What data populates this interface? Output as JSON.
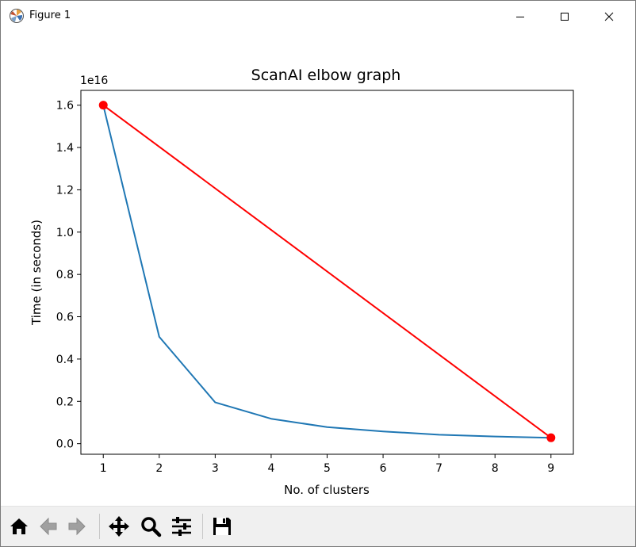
{
  "window": {
    "title": "Figure 1"
  },
  "toolbar": {
    "buttons": [
      {
        "name": "home-button",
        "icon": "home-icon"
      },
      {
        "name": "back-button",
        "icon": "arrow-left-icon"
      },
      {
        "name": "forward-button",
        "icon": "arrow-right-icon"
      },
      {
        "name": "pan-button",
        "icon": "move-icon"
      },
      {
        "name": "zoom-button",
        "icon": "magnifier-icon"
      },
      {
        "name": "configure-subplots-button",
        "icon": "sliders-icon"
      },
      {
        "name": "save-button",
        "icon": "floppy-disk-icon"
      }
    ]
  },
  "chart_data": {
    "type": "line",
    "title": "ScanAI elbow graph",
    "xlabel": "No. of clusters",
    "ylabel": "Time (in seconds)",
    "y_offset_label": "1e16",
    "xlim": [
      0.6,
      9.4
    ],
    "ylim": [
      -0.05,
      1.67
    ],
    "x_ticks": [
      1,
      2,
      3,
      4,
      5,
      6,
      7,
      8,
      9
    ],
    "y_ticks": [
      0.0,
      0.2,
      0.4,
      0.6,
      0.8,
      1.0,
      1.2,
      1.4,
      1.6
    ],
    "y_tick_labels": [
      "0.0",
      "0.2",
      "0.4",
      "0.6",
      "0.8",
      "1.0",
      "1.2",
      "1.4",
      "1.6"
    ],
    "grid": false,
    "series": [
      {
        "color": "#1f77b4",
        "style": "line",
        "x": [
          1,
          2,
          3,
          4,
          5,
          6,
          7,
          8,
          9
        ],
        "y": [
          1.6,
          0.505,
          0.195,
          0.118,
          0.078,
          0.058,
          0.042,
          0.034,
          0.028
        ]
      },
      {
        "color": "#ff0000",
        "style": "line-with-endpoint-markers",
        "x": [
          1,
          9
        ],
        "y": [
          1.6,
          0.028
        ]
      }
    ]
  }
}
